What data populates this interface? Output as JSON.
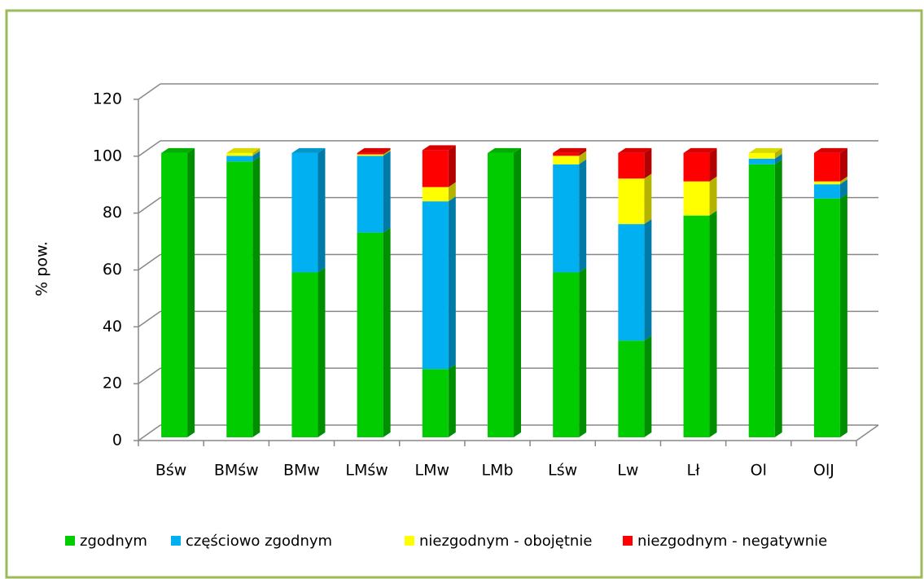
{
  "chart_data": {
    "type": "bar",
    "stacked": true,
    "ylabel": "% pow.",
    "categories": [
      "Bśw",
      "BMśw",
      "BMw",
      "LMśw",
      "LMw",
      "LMb",
      "Lśw",
      "Lw",
      "Lł",
      "Ol",
      "OlJ"
    ],
    "series": [
      {
        "name": "zgodnym",
        "color": "#00cc00",
        "values": [
          100,
          97,
          58,
          72,
          24,
          100,
          58,
          34,
          78,
          96,
          84
        ]
      },
      {
        "name": "częściowo zgodnym",
        "color": "#00b0f0",
        "values": [
          0,
          2,
          42,
          27,
          59,
          0,
          38,
          41,
          0,
          2,
          5
        ]
      },
      {
        "name": "niezgodnym - obojętnie",
        "color": "#ffff00",
        "values": [
          0,
          1,
          0,
          0.5,
          5,
          0,
          3,
          16,
          12,
          2,
          1
        ]
      },
      {
        "name": "niezgodnym - negatywnie",
        "color": "#ff0000",
        "values": [
          0,
          0,
          0,
          0.5,
          13,
          0,
          1,
          9,
          10,
          0,
          10
        ]
      }
    ],
    "ylim": [
      0,
      120
    ],
    "yticks": [
      0,
      20,
      40,
      60,
      80,
      100,
      120
    ],
    "grid": true,
    "legend": "bottom"
  }
}
